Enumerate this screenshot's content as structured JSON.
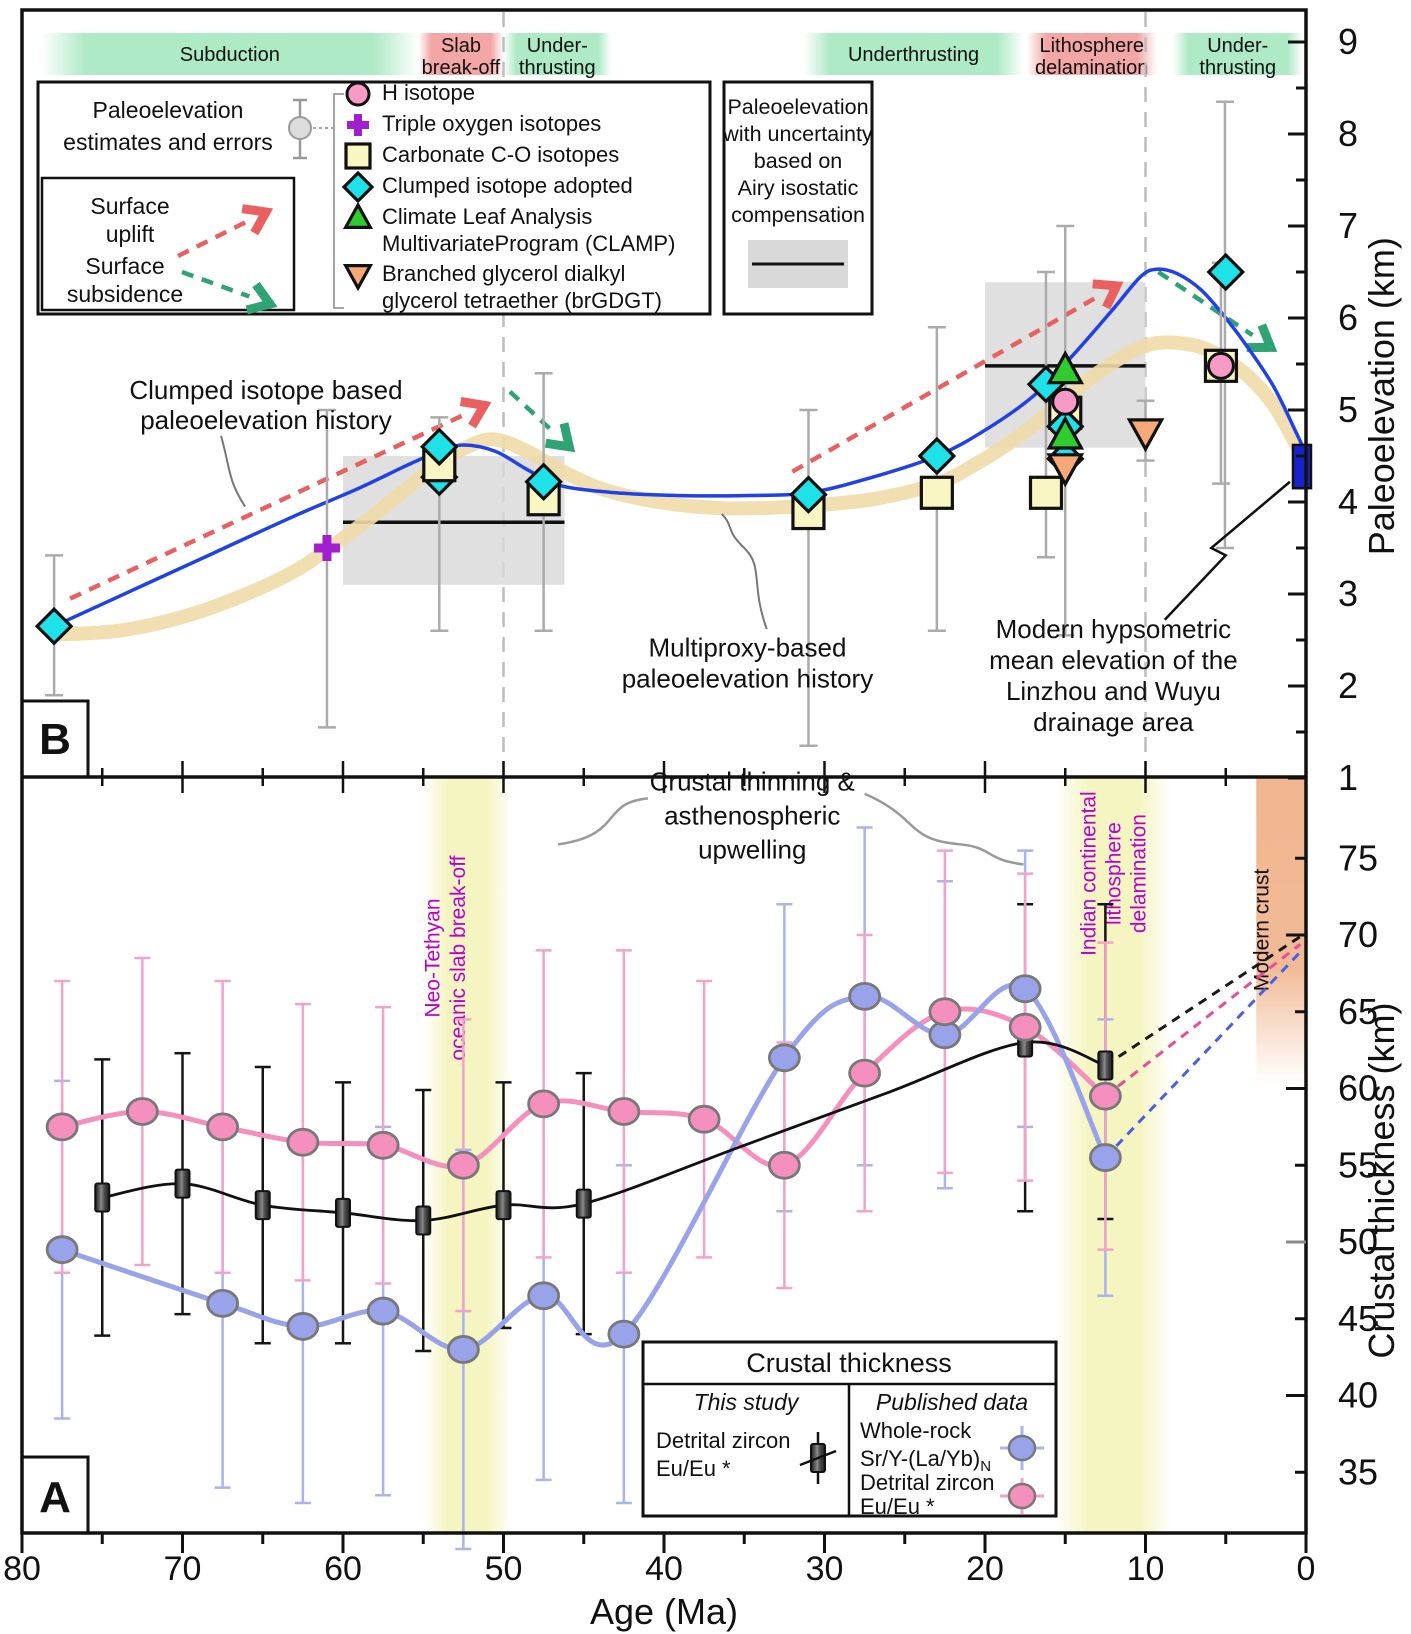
{
  "colors": {
    "cyan": "#1FE1E8",
    "pale_yellow": "#FAF6C3",
    "pink": "#F79AC6",
    "green": "#2ECC2E",
    "orange": "#F6A878",
    "purple": "#A020D0",
    "modern_bar_blue": "#1822CC",
    "clumped_curve_blue": "#2040E8",
    "multiproxy_tan": "#F0DCA8",
    "uplift_red": "#E86060",
    "subsidence_green": "#2FA374",
    "gray_box": "#D9D9D9",
    "band_green": "#9FE6BC",
    "band_red": "#F29C9C",
    "pink_a": "#F48FBE",
    "blue_a": "#98A3EA",
    "pink_err": "#F2A3CB",
    "blue_err": "#A9B3F0",
    "yellow_band": "#F4F4BC",
    "crust_band": "#EFAF85",
    "purple_label": "#BB00CC",
    "gray_err": "#ABABAB",
    "black": "#111111"
  },
  "chart_data": {
    "x_axis": {
      "title": "Age (Ma)",
      "ticks": [
        80,
        70,
        60,
        50,
        40,
        30,
        20,
        10,
        0
      ],
      "range": [
        80,
        0
      ]
    },
    "panel_b": {
      "label": "B",
      "type": "scatter",
      "y_axis": {
        "title": "Paleoelevation (km)",
        "ticks": [
          1,
          2,
          3,
          4,
          5,
          6,
          7,
          8,
          9
        ],
        "range": [
          1,
          9.35
        ]
      },
      "tectonic_bands": [
        {
          "lines": [
            "Subduction"
          ],
          "kind": "green",
          "from_age": 78.8,
          "to_age": 55.3
        },
        {
          "lines": [
            "Slab",
            "break-off"
          ],
          "kind": "red",
          "from_age": 55.3,
          "to_age": 50.0
        },
        {
          "lines": [
            "Under-",
            "thrusting"
          ],
          "kind": "green",
          "from_age": 50.0,
          "to_age": 43.3
        },
        {
          "lines": [
            "Underthrusting"
          ],
          "kind": "green",
          "from_age": 31.3,
          "to_age": 17.6
        },
        {
          "lines": [
            "Lithosphere",
            "delamination"
          ],
          "kind": "red",
          "from_age": 17.4,
          "to_age": 9.3
        },
        {
          "lines": [
            "Under-",
            "thrusting"
          ],
          "kind": "green",
          "from_age": 8.3,
          "to_age": 0.2
        }
      ],
      "dashed_vlines_age": [
        50,
        10
      ],
      "uncertainty_boxes": [
        {
          "from_age": 60,
          "to_age": 46.2,
          "elev_top": 4.5,
          "elev_bottom": 3.1,
          "mean_line": 3.78
        },
        {
          "from_age": 20,
          "to_age": 10,
          "elev_top": 6.39,
          "elev_bottom": 4.59,
          "mean_line": 5.48
        }
      ],
      "modern_elevation_bar": {
        "age": 0.25,
        "elev_low": 4.15,
        "elev_high": 4.62
      },
      "curves": {
        "clumped_blue": [
          [
            78,
            2.65
          ],
          [
            73,
            3.05
          ],
          [
            68,
            3.45
          ],
          [
            63,
            3.85
          ],
          [
            59,
            4.15
          ],
          [
            56,
            4.4
          ],
          [
            54,
            4.55
          ],
          [
            52.5,
            4.62
          ],
          [
            50.5,
            4.55
          ],
          [
            48.5,
            4.35
          ],
          [
            46.5,
            4.18
          ],
          [
            43,
            4.1
          ],
          [
            39,
            4.07
          ],
          [
            35,
            4.07
          ],
          [
            31,
            4.1
          ],
          [
            27,
            4.27
          ],
          [
            23,
            4.5
          ],
          [
            20,
            4.78
          ],
          [
            17,
            5.15
          ],
          [
            14.5,
            5.6
          ],
          [
            12,
            6.1
          ],
          [
            10.3,
            6.45
          ],
          [
            9.3,
            6.53
          ],
          [
            8,
            6.48
          ],
          [
            6.5,
            6.3
          ],
          [
            5,
            6.0
          ],
          [
            3.5,
            5.65
          ],
          [
            2,
            5.25
          ],
          [
            0.6,
            4.75
          ],
          [
            0.2,
            4.6
          ]
        ],
        "multiproxy_tan": [
          [
            78,
            2.56
          ],
          [
            74,
            2.6
          ],
          [
            70,
            2.75
          ],
          [
            66,
            3.0
          ],
          [
            63,
            3.25
          ],
          [
            61,
            3.48
          ],
          [
            58.5,
            3.8
          ],
          [
            56,
            4.15
          ],
          [
            54,
            4.42
          ],
          [
            52,
            4.62
          ],
          [
            50.5,
            4.68
          ],
          [
            48.5,
            4.55
          ],
          [
            46.5,
            4.35
          ],
          [
            44,
            4.15
          ],
          [
            41,
            4.02
          ],
          [
            38,
            3.95
          ],
          [
            35,
            3.93
          ],
          [
            31,
            3.96
          ],
          [
            27,
            4.03
          ],
          [
            23,
            4.2
          ],
          [
            20.5,
            4.42
          ],
          [
            18,
            4.7
          ],
          [
            15.5,
            5.05
          ],
          [
            13,
            5.4
          ],
          [
            11,
            5.62
          ],
          [
            9.5,
            5.72
          ],
          [
            8,
            5.73
          ],
          [
            6.5,
            5.68
          ],
          [
            5,
            5.55
          ],
          [
            3.5,
            5.35
          ],
          [
            2,
            5.05
          ],
          [
            0.6,
            4.62
          ],
          [
            0.2,
            4.5
          ]
        ]
      },
      "arrows": [
        {
          "kind": "uplift",
          "from": [
            77,
            2.95
          ],
          "to": [
            51.2,
            5.05
          ]
        },
        {
          "kind": "subsidence",
          "from": [
            49.6,
            5.2
          ],
          "to": [
            45.9,
            4.6
          ]
        },
        {
          "kind": "uplift",
          "from": [
            32,
            4.33
          ],
          "to": [
            11.8,
            6.35
          ]
        },
        {
          "kind": "subsidence",
          "from": [
            9.2,
            6.5
          ],
          "to": [
            2.2,
            5.68
          ]
        }
      ],
      "error_bars": [
        {
          "age": 78,
          "lo": 1.9,
          "hi": 3.42
        },
        {
          "age": 61,
          "lo": 1.55,
          "hi": 5.0
        },
        {
          "age": 54,
          "lo": 2.6,
          "hi": 4.92
        },
        {
          "age": 47.5,
          "lo": 2.6,
          "hi": 5.4
        },
        {
          "age": 31,
          "lo": 1.35,
          "hi": 5.0
        },
        {
          "age": 23,
          "lo": 2.6,
          "hi": 5.9
        },
        {
          "age": 16.2,
          "lo": 3.4,
          "hi": 6.5
        },
        {
          "age": 15,
          "lo": 2.55,
          "hi": 7.0
        },
        {
          "age": 10,
          "lo": 4.45,
          "hi": 5.1
        },
        {
          "age": 5.05,
          "lo": 3.5,
          "hi": 8.35
        },
        {
          "age": 5.3,
          "lo": 4.2,
          "hi": 6.6
        }
      ],
      "markers": [
        {
          "type": "diamond",
          "age": 54,
          "elev": 4.27
        },
        {
          "type": "diamond",
          "age": 15,
          "elev": 4.47
        },
        {
          "type": "square",
          "age": 54,
          "elev": 4.4
        },
        {
          "type": "square",
          "age": 47.5,
          "elev": 4.03
        },
        {
          "type": "square",
          "age": 31,
          "elev": 3.88
        },
        {
          "type": "square",
          "age": 23,
          "elev": 4.1
        },
        {
          "type": "square",
          "age": 16.2,
          "elev": 4.1
        },
        {
          "type": "square",
          "age": 15,
          "elev": 4.97
        },
        {
          "type": "square",
          "age": 5.3,
          "elev": 5.48
        },
        {
          "type": "diamond",
          "age": 78,
          "elev": 2.65
        },
        {
          "type": "diamond",
          "age": 47.5,
          "elev": 4.22
        },
        {
          "type": "diamond",
          "age": 31,
          "elev": 4.08
        },
        {
          "type": "diamond",
          "age": 23,
          "elev": 4.5
        },
        {
          "type": "diamond",
          "age": 16.2,
          "elev": 5.28
        },
        {
          "type": "diamond",
          "age": 54,
          "elev": 4.6
        },
        {
          "type": "diamond",
          "age": 15,
          "elev": 4.82
        },
        {
          "type": "diamond",
          "age": 5,
          "elev": 6.5
        },
        {
          "type": "triangle_up",
          "age": 15,
          "elev": 5.43
        },
        {
          "type": "circle",
          "age": 15,
          "elev": 5.09
        },
        {
          "type": "circle",
          "age": 5.3,
          "elev": 5.48
        },
        {
          "type": "triangle_up",
          "age": 15,
          "elev": 4.72
        },
        {
          "type": "triangle_down",
          "age": 15,
          "elev": 4.38
        },
        {
          "type": "triangle_down",
          "age": 10,
          "elev": 4.76
        },
        {
          "type": "cross",
          "age": 61,
          "elev": 3.5
        }
      ],
      "legend_estimates": {
        "lines": [
          "Paleoelevation",
          "estimates and errors"
        ]
      },
      "legend_arrows": {
        "uplift": [
          "Surface",
          "uplift"
        ],
        "subsidence": [
          "Surface",
          "subsidence"
        ]
      },
      "legend_items": [
        {
          "marker": "circle",
          "lines": [
            "H isotope"
          ]
        },
        {
          "marker": "cross",
          "lines": [
            "Triple oxygen isotopes"
          ]
        },
        {
          "marker": "square",
          "lines": [
            "Carbonate C-O isotopes"
          ]
        },
        {
          "marker": "diamond",
          "lines": [
            "Clumped isotope adopted"
          ]
        },
        {
          "marker": "triangle_up",
          "lines": [
            "Climate Leaf Analysis",
            "MultivariateProgram (CLAMP)"
          ]
        },
        {
          "marker": "triangle_down",
          "lines": [
            "Branched glycerol dialkyl",
            "glycerol tetraether (brGDGT)"
          ]
        }
      ],
      "legend_uncertainty": {
        "lines": [
          "Paleoelevation",
          "with uncertainty",
          "based on",
          "Airy isostatic",
          "compensation"
        ]
      },
      "annotations": {
        "clumped": {
          "lines": [
            "Clumped isotope based",
            "paleoelevation history"
          ],
          "age": 64.8,
          "elev": 5.12
        },
        "multiproxy": {
          "lines": [
            "Multiproxy-based",
            "paleoelevation history"
          ],
          "age": 34.8,
          "elev": 2.32
        },
        "modern": {
          "lines": [
            "Modern hypsometric",
            "mean elevation of the",
            "Linzhou and Wuyu",
            "drainage area"
          ],
          "age": 12.0,
          "elev": 2.52
        }
      }
    },
    "panel_a": {
      "label": "A",
      "type": "scatter",
      "y_axis": {
        "title": "Crustal thickness (km)",
        "ticks": [
          35,
          40,
          45,
          50,
          55,
          60,
          65,
          70,
          75
        ],
        "range": [
          31,
          80.3
        ]
      },
      "series": [
        {
          "name": "this_study_detrital_zircon",
          "marker": "black_square",
          "ages": [
            75,
            70,
            65,
            60,
            55,
            50,
            45,
            17.5,
            12.5
          ],
          "values": [
            52.9,
            53.8,
            52.4,
            51.9,
            51.4,
            52.4,
            52.5,
            63,
            61.5
          ],
          "err_up": [
            9,
            8.5,
            9,
            8.5,
            8.5,
            8,
            8.5,
            9,
            10.5
          ],
          "err_dn": [
            9,
            8.5,
            9,
            8.5,
            8.5,
            8,
            8.5,
            11,
            10
          ],
          "line_ages": [
            75,
            70,
            65,
            60,
            55,
            50,
            45,
            35,
            26,
            17.5,
            12.5
          ],
          "line_values": [
            52.9,
            53.8,
            52.4,
            51.9,
            51.4,
            52.4,
            52.5,
            56.3,
            59.75,
            63,
            61.5
          ]
        },
        {
          "name": "published_whole_rock_sr_y_la_yb",
          "marker": "blue_circle",
          "ages": [
            77.5,
            67.5,
            62.5,
            57.5,
            52.5,
            47.5,
            42.5,
            32.5,
            27.5,
            22.5,
            17.5,
            12.5
          ],
          "values": [
            49.5,
            46,
            44.5,
            45.5,
            43,
            46.5,
            44,
            62,
            66,
            63.5,
            66.5,
            55.5
          ],
          "err_up": [
            11,
            12,
            11.5,
            12,
            13,
            12,
            11,
            10,
            11,
            10,
            9,
            9
          ],
          "err_dn": [
            11,
            12,
            11.5,
            12,
            13,
            12,
            11,
            10,
            11,
            10,
            9,
            9
          ]
        },
        {
          "name": "published_detrital_zircon",
          "marker": "pink_circle",
          "ages": [
            77.5,
            72.5,
            67.5,
            62.5,
            57.5,
            52.5,
            47.5,
            42.5,
            37.5,
            32.5,
            27.5,
            22.5,
            17.5,
            12.5
          ],
          "values": [
            57.5,
            58.5,
            57.5,
            56.5,
            56.3,
            55,
            59,
            58.5,
            58,
            55,
            61,
            65,
            64,
            59.5
          ],
          "err_up": [
            9.5,
            10,
            9.5,
            9,
            9,
            9.5,
            10,
            10.5,
            9,
            8,
            9,
            10.5,
            10,
            10
          ],
          "err_dn": [
            9.5,
            10,
            9.5,
            9,
            9,
            9.5,
            10,
            10.5,
            9,
            8,
            9,
            10.5,
            10,
            10
          ]
        }
      ],
      "projections_to_modern": [
        {
          "series": "this_study_detrital_zircon",
          "from": [
            12.5,
            61.5
          ],
          "to": [
            0.35,
            69.9
          ]
        },
        {
          "series": "published_detrital_zircon",
          "from": [
            12.5,
            59.5
          ],
          "to": [
            0.35,
            69.4
          ]
        },
        {
          "series": "published_whole_rock_sr_y_la_yb",
          "from": [
            12.5,
            55.5
          ],
          "to": [
            0.35,
            68.9
          ]
        }
      ],
      "yellow_bands": [
        {
          "from_age": 55.0,
          "to_age": 49.5,
          "label_lines": [
            "Neo-Tethyan",
            "oceanic slab break-off"
          ],
          "label_ages": [
            54.0,
            52.4
          ],
          "label_t": 68.5
        },
        {
          "from_age": 15.6,
          "to_age": 8.4,
          "label_lines": [
            "Indian continental",
            "lithosphere",
            "delamination"
          ],
          "label_ages": [
            13.1,
            11.55,
            10.0
          ],
          "label_t": 74.0
        }
      ],
      "modern_crust_band": {
        "from_age": 3.1,
        "to_age": 0,
        "t_top": 80.3,
        "t_fade": 60.3,
        "label": "Modern crust"
      },
      "annotations": {
        "thinning": {
          "lines": [
            "Crustal thinning &",
            "asthenospheric",
            "upwelling"
          ],
          "age": 34.5,
          "t": 79.4
        }
      },
      "legend": {
        "title": "Crustal thickness",
        "col_this_study": {
          "header": "This study",
          "entry_lines": [
            "Detrital zircon",
            "Eu/Eu *"
          ]
        },
        "col_published": {
          "header": "Published data",
          "entry1_lines": [
            "Whole-rock",
            "Sr/Y-(La/Yb)"
          ],
          "entry1_sub": "N",
          "entry2_lines": [
            "Detrital zircon",
            "Eu/Eu *"
          ]
        }
      }
    }
  }
}
